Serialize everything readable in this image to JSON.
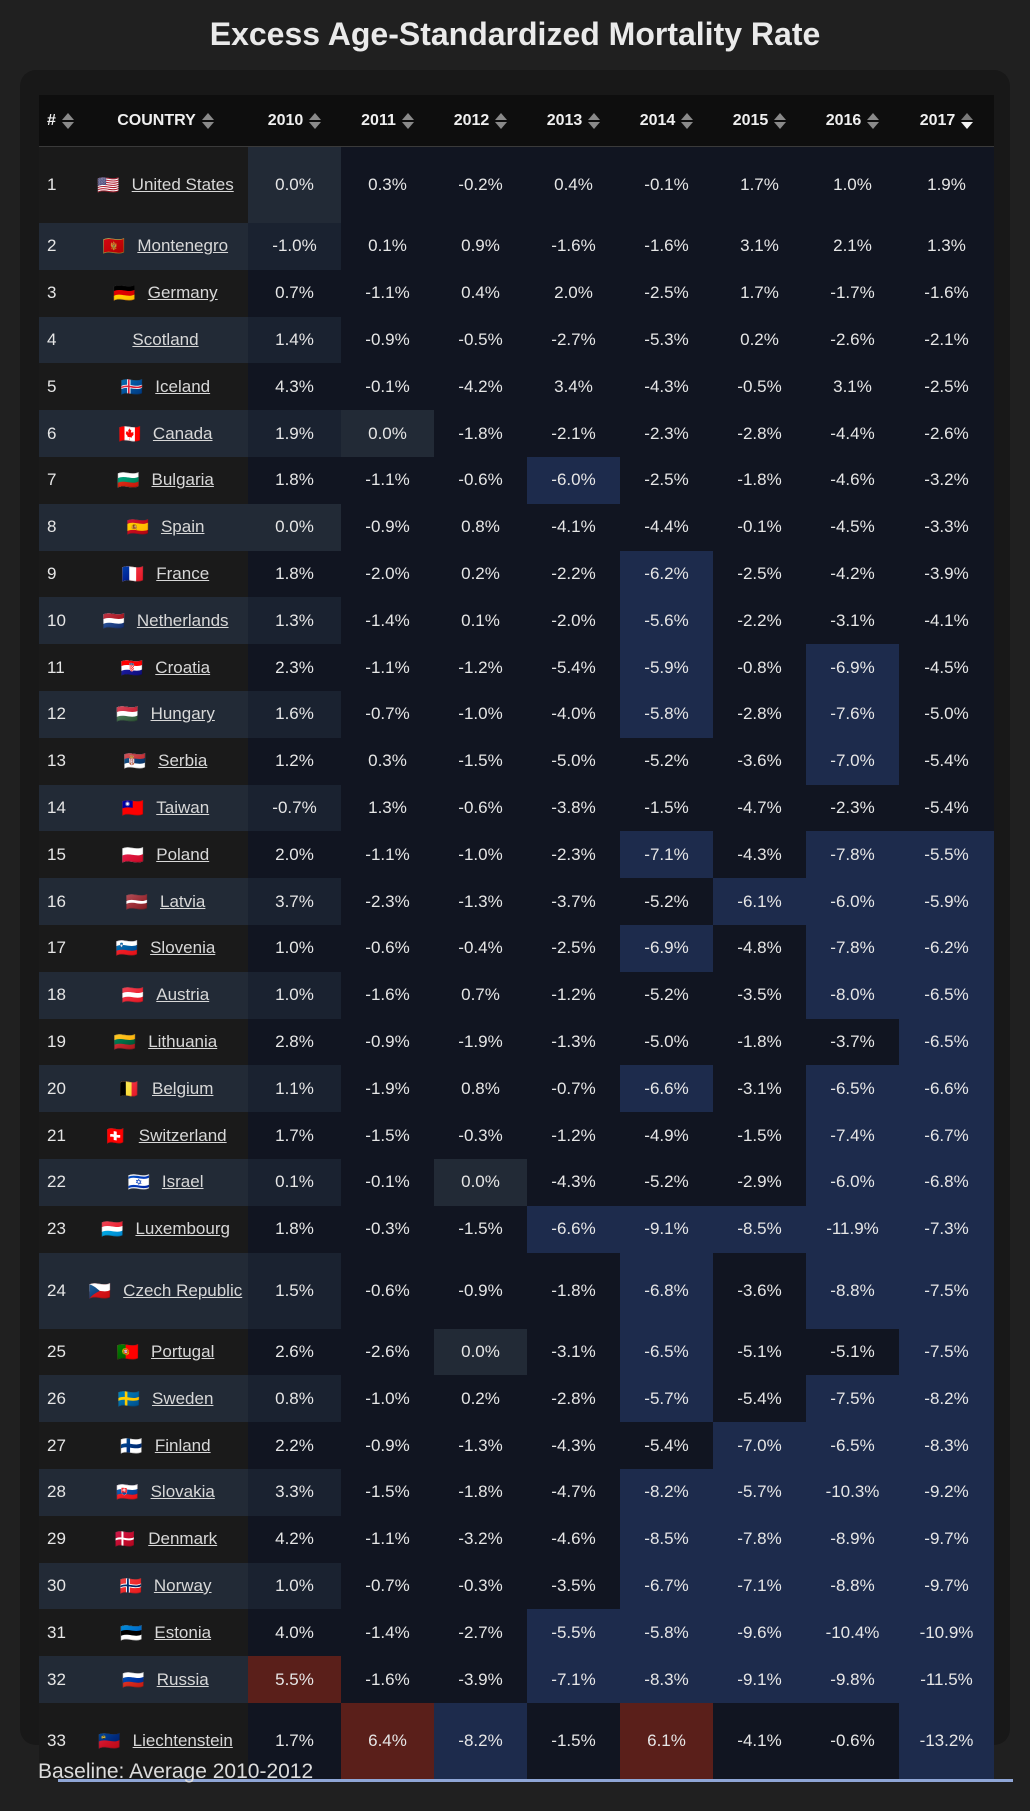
{
  "title": "Excess Age-Standardized Mortality Rate",
  "footnote": "Baseline: Average 2010-2012",
  "colors": {
    "neutral": "#222a36",
    "dark": "#111521",
    "negative": "#1d2b4c",
    "positive": "#5a1f1a",
    "separator": "#8fa6d6"
  },
  "headers": {
    "rank": "#",
    "country": "COUNTRY",
    "years": [
      "2010",
      "2011",
      "2012",
      "2013",
      "2014",
      "2015",
      "2016",
      "2017"
    ]
  },
  "sort": {
    "column": "2017",
    "direction": "descending"
  },
  "rows": [
    {
      "rank": "1",
      "flag": "🇺🇸",
      "country": "United States",
      "values": [
        "0.0%",
        "0.3%",
        "-0.2%",
        "0.4%",
        "-0.1%",
        "1.7%",
        "1.0%",
        "1.9%"
      ]
    },
    {
      "rank": "2",
      "flag": "🇲🇪",
      "country": "Montenegro",
      "values": [
        "-1.0%",
        "0.1%",
        "0.9%",
        "-1.6%",
        "-1.6%",
        "3.1%",
        "2.1%",
        "1.3%"
      ]
    },
    {
      "rank": "3",
      "flag": "🇩🇪",
      "country": "Germany",
      "values": [
        "0.7%",
        "-1.1%",
        "0.4%",
        "2.0%",
        "-2.5%",
        "1.7%",
        "-1.7%",
        "-1.6%"
      ]
    },
    {
      "rank": "4",
      "flag": "",
      "country": "Scotland",
      "values": [
        "1.4%",
        "-0.9%",
        "-0.5%",
        "-2.7%",
        "-5.3%",
        "0.2%",
        "-2.6%",
        "-2.1%"
      ]
    },
    {
      "rank": "5",
      "flag": "🇮🇸",
      "country": "Iceland",
      "values": [
        "4.3%",
        "-0.1%",
        "-4.2%",
        "3.4%",
        "-4.3%",
        "-0.5%",
        "3.1%",
        "-2.5%"
      ]
    },
    {
      "rank": "6",
      "flag": "🇨🇦",
      "country": "Canada",
      "values": [
        "1.9%",
        "0.0%",
        "-1.8%",
        "-2.1%",
        "-2.3%",
        "-2.8%",
        "-4.4%",
        "-2.6%"
      ]
    },
    {
      "rank": "7",
      "flag": "🇧🇬",
      "country": "Bulgaria",
      "values": [
        "1.8%",
        "-1.1%",
        "-0.6%",
        "-6.0%",
        "-2.5%",
        "-1.8%",
        "-4.6%",
        "-3.2%"
      ]
    },
    {
      "rank": "8",
      "flag": "🇪🇸",
      "country": "Spain",
      "values": [
        "0.0%",
        "-0.9%",
        "0.8%",
        "-4.1%",
        "-4.4%",
        "-0.1%",
        "-4.5%",
        "-3.3%"
      ]
    },
    {
      "rank": "9",
      "flag": "🇫🇷",
      "country": "France",
      "values": [
        "1.8%",
        "-2.0%",
        "0.2%",
        "-2.2%",
        "-6.2%",
        "-2.5%",
        "-4.2%",
        "-3.9%"
      ]
    },
    {
      "rank": "10",
      "flag": "🇳🇱",
      "country": "Netherlands",
      "values": [
        "1.3%",
        "-1.4%",
        "0.1%",
        "-2.0%",
        "-5.6%",
        "-2.2%",
        "-3.1%",
        "-4.1%"
      ]
    },
    {
      "rank": "11",
      "flag": "🇭🇷",
      "country": "Croatia",
      "values": [
        "2.3%",
        "-1.1%",
        "-1.2%",
        "-5.4%",
        "-5.9%",
        "-0.8%",
        "-6.9%",
        "-4.5%"
      ]
    },
    {
      "rank": "12",
      "flag": "🇭🇺",
      "country": "Hungary",
      "values": [
        "1.6%",
        "-0.7%",
        "-1.0%",
        "-4.0%",
        "-5.8%",
        "-2.8%",
        "-7.6%",
        "-5.0%"
      ]
    },
    {
      "rank": "13",
      "flag": "🇷🇸",
      "country": "Serbia",
      "values": [
        "1.2%",
        "0.3%",
        "-1.5%",
        "-5.0%",
        "-5.2%",
        "-3.6%",
        "-7.0%",
        "-5.4%"
      ]
    },
    {
      "rank": "14",
      "flag": "🇹🇼",
      "country": "Taiwan",
      "values": [
        "-0.7%",
        "1.3%",
        "-0.6%",
        "-3.8%",
        "-1.5%",
        "-4.7%",
        "-2.3%",
        "-5.4%"
      ]
    },
    {
      "rank": "15",
      "flag": "🇵🇱",
      "country": "Poland",
      "values": [
        "2.0%",
        "-1.1%",
        "-1.0%",
        "-2.3%",
        "-7.1%",
        "-4.3%",
        "-7.8%",
        "-5.5%"
      ]
    },
    {
      "rank": "16",
      "flag": "🇱🇻",
      "country": "Latvia",
      "values": [
        "3.7%",
        "-2.3%",
        "-1.3%",
        "-3.7%",
        "-5.2%",
        "-6.1%",
        "-6.0%",
        "-5.9%"
      ]
    },
    {
      "rank": "17",
      "flag": "🇸🇮",
      "country": "Slovenia",
      "values": [
        "1.0%",
        "-0.6%",
        "-0.4%",
        "-2.5%",
        "-6.9%",
        "-4.8%",
        "-7.8%",
        "-6.2%"
      ]
    },
    {
      "rank": "18",
      "flag": "🇦🇹",
      "country": "Austria",
      "values": [
        "1.0%",
        "-1.6%",
        "0.7%",
        "-1.2%",
        "-5.2%",
        "-3.5%",
        "-8.0%",
        "-6.5%"
      ]
    },
    {
      "rank": "19",
      "flag": "🇱🇹",
      "country": "Lithuania",
      "values": [
        "2.8%",
        "-0.9%",
        "-1.9%",
        "-1.3%",
        "-5.0%",
        "-1.8%",
        "-3.7%",
        "-6.5%"
      ]
    },
    {
      "rank": "20",
      "flag": "🇧🇪",
      "country": "Belgium",
      "values": [
        "1.1%",
        "-1.9%",
        "0.8%",
        "-0.7%",
        "-6.6%",
        "-3.1%",
        "-6.5%",
        "-6.6%"
      ]
    },
    {
      "rank": "21",
      "flag": "🇨🇭",
      "country": "Switzerland",
      "values": [
        "1.7%",
        "-1.5%",
        "-0.3%",
        "-1.2%",
        "-4.9%",
        "-1.5%",
        "-7.4%",
        "-6.7%"
      ]
    },
    {
      "rank": "22",
      "flag": "🇮🇱",
      "country": "Israel",
      "values": [
        "0.1%",
        "-0.1%",
        "0.0%",
        "-4.3%",
        "-5.2%",
        "-2.9%",
        "-6.0%",
        "-6.8%"
      ]
    },
    {
      "rank": "23",
      "flag": "🇱🇺",
      "country": "Luxembourg",
      "values": [
        "1.8%",
        "-0.3%",
        "-1.5%",
        "-6.6%",
        "-9.1%",
        "-8.5%",
        "-11.9%",
        "-7.3%"
      ]
    },
    {
      "rank": "24",
      "flag": "🇨🇿",
      "country": "Czech Republic",
      "values": [
        "1.5%",
        "-0.6%",
        "-0.9%",
        "-1.8%",
        "-6.8%",
        "-3.6%",
        "-8.8%",
        "-7.5%"
      ]
    },
    {
      "rank": "25",
      "flag": "🇵🇹",
      "country": "Portugal",
      "values": [
        "2.6%",
        "-2.6%",
        "0.0%",
        "-3.1%",
        "-6.5%",
        "-5.1%",
        "-5.1%",
        "-7.5%"
      ]
    },
    {
      "rank": "26",
      "flag": "🇸🇪",
      "country": "Sweden",
      "values": [
        "0.8%",
        "-1.0%",
        "0.2%",
        "-2.8%",
        "-5.7%",
        "-5.4%",
        "-7.5%",
        "-8.2%"
      ]
    },
    {
      "rank": "27",
      "flag": "🇫🇮",
      "country": "Finland",
      "values": [
        "2.2%",
        "-0.9%",
        "-1.3%",
        "-4.3%",
        "-5.4%",
        "-7.0%",
        "-6.5%",
        "-8.3%"
      ]
    },
    {
      "rank": "28",
      "flag": "🇸🇰",
      "country": "Slovakia",
      "values": [
        "3.3%",
        "-1.5%",
        "-1.8%",
        "-4.7%",
        "-8.2%",
        "-5.7%",
        "-10.3%",
        "-9.2%"
      ]
    },
    {
      "rank": "29",
      "flag": "🇩🇰",
      "country": "Denmark",
      "values": [
        "4.2%",
        "-1.1%",
        "-3.2%",
        "-4.6%",
        "-8.5%",
        "-7.8%",
        "-8.9%",
        "-9.7%"
      ]
    },
    {
      "rank": "30",
      "flag": "🇳🇴",
      "country": "Norway",
      "values": [
        "1.0%",
        "-0.7%",
        "-0.3%",
        "-3.5%",
        "-6.7%",
        "-7.1%",
        "-8.8%",
        "-9.7%"
      ]
    },
    {
      "rank": "31",
      "flag": "🇪🇪",
      "country": "Estonia",
      "values": [
        "4.0%",
        "-1.4%",
        "-2.7%",
        "-5.5%",
        "-5.8%",
        "-9.6%",
        "-10.4%",
        "-10.9%"
      ]
    },
    {
      "rank": "32",
      "flag": "🇷🇺",
      "country": "Russia",
      "values": [
        "5.5%",
        "-1.6%",
        "-3.9%",
        "-7.1%",
        "-8.3%",
        "-9.1%",
        "-9.8%",
        "-11.5%"
      ]
    },
    {
      "rank": "33",
      "flag": "🇱🇮",
      "country": "Liechtenstein",
      "values": [
        "1.7%",
        "6.4%",
        "-8.2%",
        "-1.5%",
        "6.1%",
        "-4.1%",
        "-0.6%",
        "-13.2%"
      ]
    }
  ]
}
